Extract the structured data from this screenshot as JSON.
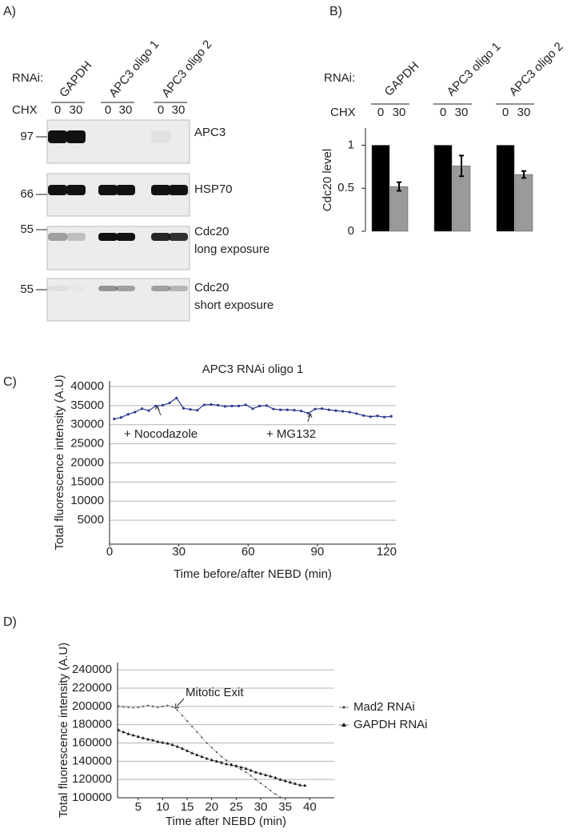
{
  "panel_labels": [
    "A)",
    "B)",
    "C)",
    "D)"
  ],
  "blot": {
    "rnai_label": "RNAi:",
    "chx_label": "CHX",
    "lanes": [
      "GAPDH",
      "APC3 oligo 1",
      "APC3 oligo 2"
    ],
    "times": [
      "0",
      "30"
    ],
    "rows": [
      {
        "marker": "97",
        "label": [
          "APC3"
        ]
      },
      {
        "marker": "66",
        "label": [
          "HSP70"
        ]
      },
      {
        "marker": "55",
        "label": [
          "Cdc20",
          "long exposure"
        ]
      },
      {
        "marker": "55",
        "label": [
          "Cdc20",
          "short exposure"
        ]
      }
    ]
  },
  "chart_data": [
    {
      "type": "bar",
      "rnai_label": "RNAi:",
      "chx_label": "CHX",
      "ylabel": "Cdc20 level",
      "categories": [
        "GAPDH",
        "APC3 oligo 1",
        "APC3 oligo 2"
      ],
      "series": [
        {
          "name": "0",
          "color": "#000000",
          "values": [
            1,
            1,
            1
          ]
        },
        {
          "name": "30",
          "color": "#9a9a9a",
          "values": [
            0.52,
            0.76,
            0.66
          ],
          "errors": [
            0.05,
            0.12,
            0.04
          ]
        }
      ],
      "ylim": [
        0,
        1.2
      ],
      "yticks": [
        0,
        0.5,
        1
      ]
    },
    {
      "type": "line",
      "title": "APC3 RNAi oligo 1",
      "xlabel": "Time before/after NEBD (min)",
      "ylabel": "Total fluorescence intensity (A.U)",
      "x": [
        2,
        5,
        8,
        11,
        14,
        17,
        20,
        23,
        26,
        29,
        32,
        35,
        38,
        41,
        44,
        47,
        50,
        53,
        56,
        59,
        62,
        65,
        68,
        71,
        74,
        77,
        80,
        83,
        86,
        89,
        92,
        95,
        98,
        101,
        104,
        107,
        110,
        113,
        116,
        119,
        122
      ],
      "series": [
        {
          "color": "#2b3990",
          "values": [
            31500,
            31900,
            32700,
            33300,
            34200,
            33700,
            34900,
            35100,
            35700,
            37000,
            34300,
            34000,
            33800,
            35200,
            35300,
            35100,
            34800,
            34900,
            34900,
            35200,
            34200,
            34900,
            35000,
            34100,
            33900,
            33900,
            33800,
            33600,
            33000,
            34100,
            34200,
            33900,
            33700,
            33500,
            33300,
            32900,
            32400,
            32100,
            32300,
            32000,
            32200
          ]
        }
      ],
      "annotations": [
        "+ Nocodazole",
        "+ MG132"
      ],
      "xlim": [
        0,
        124
      ],
      "xticks": [
        0,
        30,
        60,
        90,
        120
      ],
      "ylim": [
        -1260,
        41470
      ],
      "yticks": [
        5000,
        10000,
        15000,
        20000,
        25000,
        30000,
        35000,
        40000
      ],
      "grid": true
    },
    {
      "type": "line",
      "xlabel": "Time after NEBD (min)",
      "ylabel": "Total fluorescence intensity (A.U)",
      "series": [
        {
          "name": "Mad2 RNAi",
          "color": "#333333",
          "marker": "dot",
          "x": [
            1,
            2,
            3,
            4,
            5,
            6,
            7,
            8,
            9,
            10,
            11,
            12,
            13,
            14,
            15,
            16,
            17,
            18,
            19,
            20,
            21,
            22,
            23,
            24,
            25,
            26,
            27,
            28,
            29,
            30,
            31,
            32,
            33,
            34
          ],
          "values": [
            200000,
            199500,
            199000,
            198500,
            199000,
            200000,
            201000,
            200000,
            199000,
            200000,
            201000,
            199500,
            196000,
            190000,
            184000,
            178000,
            172000,
            166000,
            160000,
            155000,
            150000,
            145000,
            141000,
            137000,
            134000,
            131000,
            128000,
            124000,
            120000,
            116000,
            112000,
            108000,
            104000,
            100500
          ]
        },
        {
          "name": "GAPDH RNAi",
          "color": "#111111",
          "marker": "triangle",
          "x": [
            1,
            2,
            3,
            4,
            5,
            6,
            7,
            8,
            9,
            10,
            11,
            12,
            13,
            14,
            15,
            16,
            17,
            18,
            19,
            20,
            21,
            22,
            23,
            24,
            25,
            26,
            27,
            28,
            29,
            30,
            31,
            32,
            33,
            34,
            35,
            36,
            37,
            38,
            39
          ],
          "values": [
            174000,
            172000,
            170000,
            168500,
            167000,
            165500,
            164000,
            163000,
            161500,
            160500,
            159500,
            158000,
            156000,
            154000,
            151500,
            149000,
            147000,
            145000,
            143000,
            141500,
            140000,
            138500,
            137000,
            136000,
            135000,
            133500,
            132000,
            130000,
            128000,
            126500,
            125000,
            123500,
            122000,
            120000,
            118500,
            117000,
            115500,
            114000,
            113500
          ]
        }
      ],
      "annotations": [
        "Mitotic Exit"
      ],
      "xlim": [
        0.8,
        45
      ],
      "xticks": [
        5,
        10,
        15,
        20,
        25,
        30,
        35,
        40
      ],
      "ylim": [
        100000,
        248000
      ],
      "yticks": [
        100000,
        120000,
        140000,
        160000,
        180000,
        200000,
        220000,
        240000
      ],
      "grid": true
    }
  ]
}
